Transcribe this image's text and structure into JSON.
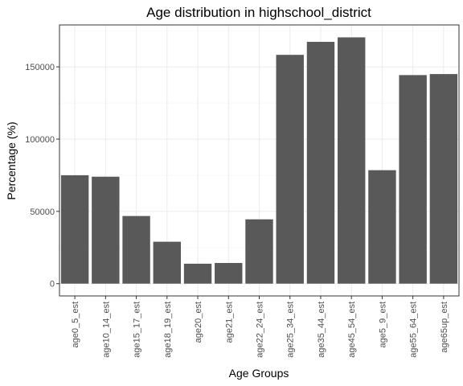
{
  "chart_data": {
    "type": "bar",
    "title": "Age distribution in highschool_district",
    "xlabel": "Age Groups",
    "ylabel": "Percentage (%)",
    "categories": [
      "age0_5_est",
      "age10_14_est",
      "age15_17_est",
      "age18_19_est",
      "age20_est",
      "age21_est",
      "age22_24_est",
      "age25_34_est",
      "age35_44_est",
      "age45_54_est",
      "age5_9_est",
      "age55_64_est",
      "age65up_est"
    ],
    "values": [
      75000,
      74000,
      46800,
      29000,
      13800,
      14300,
      44500,
      158300,
      167300,
      170400,
      78500,
      144300,
      145000
    ],
    "ylim": [
      -8500,
      179000
    ],
    "yticks": [
      0,
      50000,
      100000,
      150000
    ],
    "ytick_labels": [
      "0",
      "50000",
      "100000",
      "150000"
    ],
    "grid": true,
    "legend": "none",
    "colors": {
      "bar": "#595959",
      "grid_major": "#ebebeb",
      "grid_minor": "#f5f5f5",
      "panel_border": "#333333",
      "tick_text": "#4d4d4d"
    }
  }
}
